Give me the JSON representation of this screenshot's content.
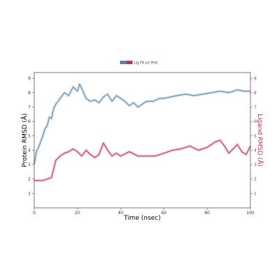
{
  "chart_data": {
    "type": "line",
    "title": "",
    "xlabel": "Time (nsec)",
    "ylabel_left": "Protein RMSD (Å)",
    "ylabel_right": "Ligand RMSD (Å)",
    "xlim": [
      0,
      100
    ],
    "ylim_left": [
      0,
      9.4
    ],
    "ylim_right": [
      0,
      9.4
    ],
    "xticks": [
      0,
      20,
      40,
      60,
      80,
      100
    ],
    "yticks_left": [
      1,
      2,
      3,
      4,
      5,
      6,
      7,
      8,
      9
    ],
    "yticks_right": [
      1,
      2,
      3,
      4,
      5,
      6,
      7,
      8,
      9
    ],
    "legend": {
      "placement": "top-center",
      "text": "Lig Fit on Prot"
    },
    "colors": {
      "protein": "#5a86a0",
      "ligand": "#b8355f",
      "axis": "#555555"
    },
    "series": [
      {
        "key": "protein",
        "axis": "left",
        "x": [
          0,
          1,
          2,
          3,
          4,
          5,
          6,
          7,
          8,
          9,
          10,
          12,
          14,
          16,
          18,
          20,
          21,
          22,
          24,
          26,
          28,
          30,
          32,
          34,
          36,
          38,
          40,
          42,
          44,
          46,
          48,
          50,
          52,
          55,
          58,
          60,
          63,
          66,
          70,
          74,
          78,
          82,
          86,
          90,
          94,
          97,
          100
        ],
        "y": [
          3.0,
          3.9,
          4.2,
          4.6,
          5.0,
          5.5,
          5.7,
          6.3,
          6.2,
          6.9,
          7.2,
          7.6,
          8.0,
          7.8,
          8.4,
          8.1,
          8.6,
          8.3,
          7.6,
          7.4,
          7.5,
          7.3,
          7.7,
          7.9,
          7.4,
          7.8,
          7.6,
          7.4,
          7.1,
          7.3,
          7.0,
          7.2,
          7.4,
          7.4,
          7.6,
          7.6,
          7.7,
          7.8,
          7.9,
          7.8,
          7.9,
          8.0,
          8.1,
          8.0,
          8.2,
          8.1,
          8.1
        ]
      },
      {
        "key": "ligand",
        "axis": "right",
        "x": [
          0,
          2,
          4,
          6,
          8,
          10,
          12,
          14,
          16,
          18,
          20,
          22,
          24,
          26,
          28,
          30,
          32,
          34,
          36,
          38,
          40,
          44,
          48,
          52,
          56,
          60,
          64,
          68,
          72,
          76,
          80,
          84,
          86,
          88,
          90,
          92,
          94,
          96,
          98,
          100
        ],
        "y": [
          1.9,
          1.9,
          1.9,
          2.0,
          2.1,
          3.3,
          3.6,
          3.8,
          3.9,
          4.1,
          3.9,
          3.6,
          4.0,
          3.7,
          3.5,
          3.7,
          4.5,
          4.0,
          3.6,
          3.8,
          3.6,
          3.9,
          3.6,
          3.6,
          3.6,
          3.8,
          4.0,
          4.1,
          4.3,
          4.0,
          4.2,
          4.6,
          4.7,
          4.3,
          3.8,
          4.1,
          4.4,
          3.9,
          3.7,
          4.3
        ]
      }
    ]
  }
}
